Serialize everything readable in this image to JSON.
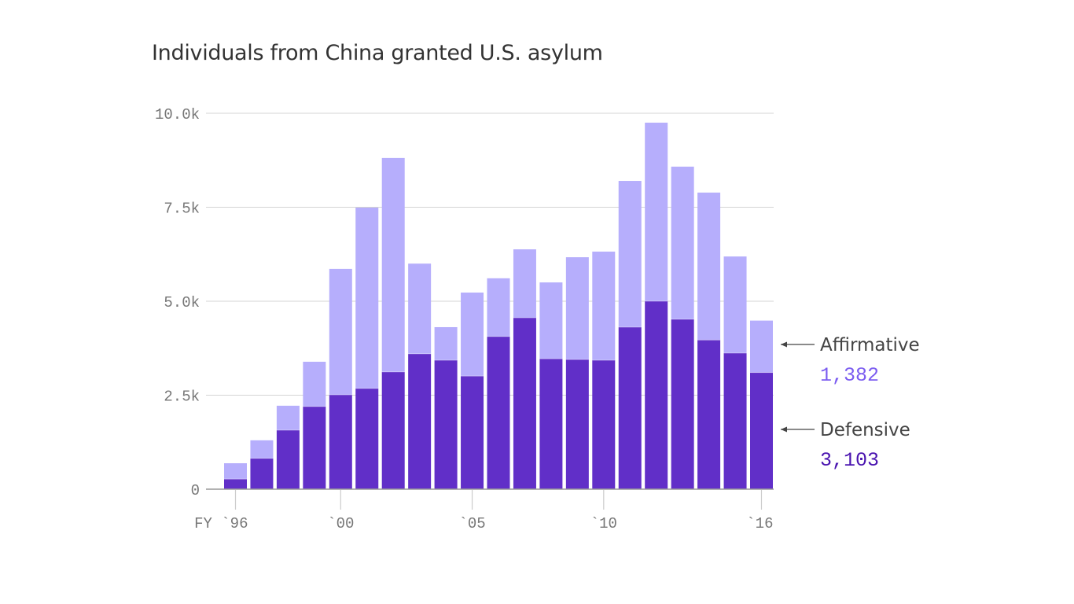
{
  "chart_data": {
    "type": "bar",
    "stacked": true,
    "title": "Individuals from China granted U.S. asylum",
    "x": [
      1996,
      1997,
      1998,
      1999,
      2000,
      2001,
      2002,
      2003,
      2004,
      2005,
      2006,
      2007,
      2008,
      2009,
      2010,
      2011,
      2012,
      2013,
      2014,
      2015,
      2016
    ],
    "x_tick_labels": [
      {
        "year": 1996,
        "label": "FY `96"
      },
      {
        "year": 2000,
        "label": "`00"
      },
      {
        "year": 2005,
        "label": "`05"
      },
      {
        "year": 2010,
        "label": "`10"
      },
      {
        "year": 2016,
        "label": "`16"
      }
    ],
    "y_ticks": [
      {
        "value": 0,
        "label": "0"
      },
      {
        "value": 2500,
        "label": "2.5k"
      },
      {
        "value": 5000,
        "label": "5.0k"
      },
      {
        "value": 7500,
        "label": "7.5k"
      },
      {
        "value": 10000,
        "label": "10.0k"
      }
    ],
    "ylim": [
      0,
      10000
    ],
    "grid": true,
    "series": [
      {
        "name": "Defensive",
        "color": "#612fc8",
        "values": [
          270,
          820,
          1570,
          2200,
          2510,
          2680,
          3120,
          3600,
          3430,
          3010,
          4060,
          4560,
          3470,
          3450,
          3430,
          4310,
          5000,
          4520,
          3970,
          3620,
          3103
        ]
      },
      {
        "name": "Affirmative",
        "color": "#b6aefc",
        "values": [
          420,
          480,
          650,
          1190,
          3350,
          4810,
          5690,
          2400,
          880,
          2220,
          1550,
          1820,
          2030,
          2720,
          2890,
          3890,
          4750,
          4060,
          3920,
          2570,
          1382
        ]
      }
    ],
    "legend": {
      "placement": "right",
      "items": [
        {
          "name": "Affirmative",
          "value_label": "1,382",
          "value_color": "#7b5cf0"
        },
        {
          "name": "Defensive",
          "value_label": "3,103",
          "value_color": "#4a14b0"
        }
      ]
    }
  }
}
